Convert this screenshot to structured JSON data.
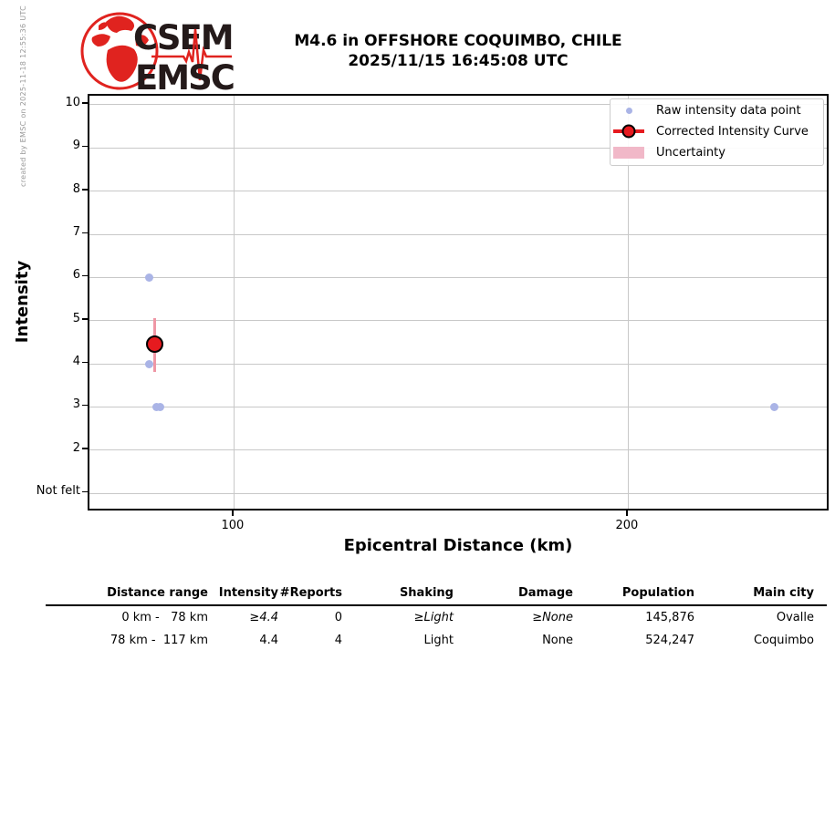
{
  "page": {
    "created_by": "created by EMSC on 2025-11-18 12:55:36 UTC"
  },
  "logo": {
    "csem": "CSEM",
    "emsc": "EMSC"
  },
  "title": {
    "line1": "M4.6 in OFFSHORE COQUIMBO, CHILE",
    "line2": "2025/11/15 16:45:08 UTC"
  },
  "chart_data": {
    "type": "scatter",
    "title": "M4.6 in OFFSHORE COQUIMBO, CHILE 2025/11/15 16:45:08 UTC",
    "xlabel": "Epicentral Distance (km)",
    "ylabel": "Intensity",
    "xlim": [
      63.2,
      251.2
    ],
    "ylim": [
      0.56,
      10.21
    ],
    "grid": true,
    "legend_position": "upper right",
    "xticks": [
      {
        "value": 100,
        "label": "100"
      },
      {
        "value": 200,
        "label": "200"
      }
    ],
    "yticks": [
      {
        "value": 10,
        "label": "10"
      },
      {
        "value": 9,
        "label": "9"
      },
      {
        "value": 8,
        "label": "8"
      },
      {
        "value": 7,
        "label": "7"
      },
      {
        "value": 6,
        "label": "6"
      },
      {
        "value": 5,
        "label": "5"
      },
      {
        "value": 4,
        "label": "4"
      },
      {
        "value": 3,
        "label": "3"
      },
      {
        "value": 2,
        "label": "2"
      },
      {
        "value": 1,
        "label": "Not felt"
      }
    ],
    "series": [
      {
        "name": "Raw intensity data point",
        "type": "scatter",
        "color": "#aab4e6",
        "points": [
          {
            "x": 78.4,
            "y": 6
          },
          {
            "x": 78.4,
            "y": 4
          },
          {
            "x": 80.2,
            "y": 3
          },
          {
            "x": 81.1,
            "y": 3
          },
          {
            "x": 237,
            "y": 3
          }
        ]
      },
      {
        "name": "Corrected Intensity Curve",
        "type": "line_marker",
        "color": "#e61a1f",
        "points": [
          {
            "x": 79.7,
            "y": 4.45
          }
        ]
      },
      {
        "name": "Uncertainty",
        "type": "band",
        "color": "#f1b8c8",
        "line_color": "#ef97a5",
        "ranges": [
          {
            "x": 79.7,
            "y_low": 3.81,
            "y_high": 5.06
          }
        ]
      }
    ],
    "colors": {
      "grid": "#c8c8c8",
      "axis": "#000000"
    }
  },
  "legend": {
    "entries": [
      {
        "label": "Raw intensity data point",
        "marker": "dot"
      },
      {
        "label": "Corrected Intensity Curve",
        "marker": "line-circle"
      },
      {
        "label": "Uncertainty",
        "marker": "patch"
      }
    ]
  },
  "table": {
    "headers": [
      "Distance range",
      "Intensity",
      "#Reports",
      "Shaking",
      "Damage",
      "Population",
      "Main city"
    ],
    "rows": [
      {
        "cells": [
          "0 km -   78 km",
          "≥4.4",
          "0",
          "≥Light",
          "≥None",
          "145,876",
          "Ovalle"
        ],
        "italic_cols": [
          1,
          3,
          4
        ]
      },
      {
        "cells": [
          "78 km -  117 km",
          "4.4",
          "4",
          "Light",
          "None",
          "524,247",
          "Coquimbo"
        ],
        "italic_cols": []
      }
    ]
  }
}
